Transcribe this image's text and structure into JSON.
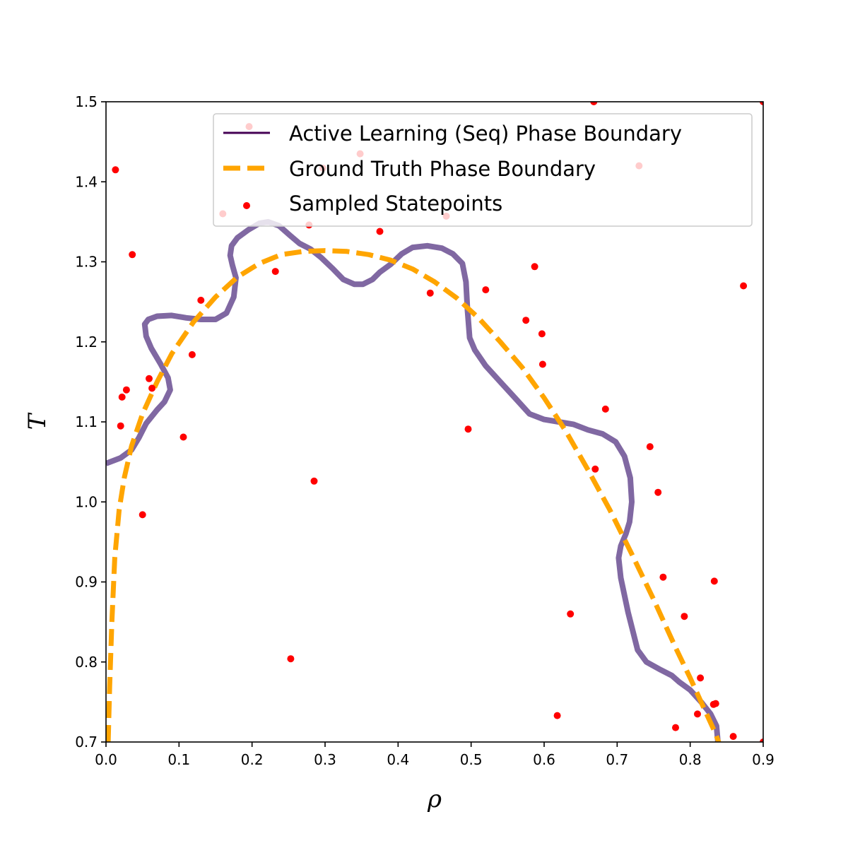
{
  "chart_data": {
    "type": "scatter",
    "xlabel": "ρ",
    "ylabel": "T",
    "xlim": [
      0.0,
      0.9
    ],
    "ylim": [
      0.7,
      1.5
    ],
    "xticks": [
      "0.0",
      "0.1",
      "0.2",
      "0.3",
      "0.4",
      "0.5",
      "0.6",
      "0.7",
      "0.8",
      "0.9"
    ],
    "yticks": [
      "0.7",
      "0.8",
      "0.9",
      "1.0",
      "1.1",
      "1.2",
      "1.3",
      "1.4",
      "1.5"
    ],
    "grid": false,
    "legend_position": "top-right",
    "series": [
      {
        "name": "Active Learning (Seq) Phase Boundary",
        "kind": "line",
        "color": "#440154",
        "stroke_color": "#8068a2",
        "x": [
          0.0,
          0.02,
          0.035,
          0.045,
          0.055,
          0.07,
          0.08,
          0.088,
          0.085,
          0.075,
          0.062,
          0.055,
          0.053,
          0.058,
          0.07,
          0.09,
          0.11,
          0.13,
          0.15,
          0.165,
          0.175,
          0.178,
          0.173,
          0.17,
          0.172,
          0.18,
          0.195,
          0.21,
          0.222,
          0.237,
          0.252,
          0.265,
          0.28,
          0.295,
          0.31,
          0.325,
          0.34,
          0.352,
          0.365,
          0.375,
          0.39,
          0.405,
          0.42,
          0.44,
          0.46,
          0.475,
          0.488,
          0.493,
          0.495,
          0.498,
          0.505,
          0.52,
          0.54,
          0.56,
          0.58,
          0.6,
          0.62,
          0.64,
          0.66,
          0.68,
          0.698,
          0.71,
          0.718,
          0.72,
          0.717,
          0.712,
          0.705,
          0.702,
          0.705,
          0.715,
          0.728,
          0.74,
          0.76,
          0.775,
          0.785,
          0.8,
          0.815,
          0.828,
          0.836,
          0.838
        ],
        "y": [
          1.048,
          1.055,
          1.065,
          1.08,
          1.098,
          1.115,
          1.125,
          1.14,
          1.155,
          1.172,
          1.192,
          1.207,
          1.222,
          1.228,
          1.232,
          1.233,
          1.23,
          1.228,
          1.228,
          1.236,
          1.256,
          1.28,
          1.296,
          1.308,
          1.32,
          1.33,
          1.34,
          1.348,
          1.35,
          1.345,
          1.333,
          1.323,
          1.316,
          1.305,
          1.292,
          1.278,
          1.272,
          1.272,
          1.278,
          1.287,
          1.297,
          1.31,
          1.318,
          1.32,
          1.317,
          1.31,
          1.298,
          1.275,
          1.24,
          1.205,
          1.19,
          1.17,
          1.15,
          1.13,
          1.11,
          1.103,
          1.1,
          1.097,
          1.09,
          1.085,
          1.075,
          1.057,
          1.03,
          1.0,
          0.975,
          0.96,
          0.945,
          0.93,
          0.905,
          0.862,
          0.815,
          0.8,
          0.79,
          0.783,
          0.775,
          0.765,
          0.75,
          0.735,
          0.72,
          0.7
        ]
      },
      {
        "name": "Ground Truth Phase Boundary",
        "kind": "dashed-line",
        "color": "#ffa500",
        "x": [
          0.003,
          0.005,
          0.008,
          0.012,
          0.018,
          0.025,
          0.035,
          0.05,
          0.07,
          0.09,
          0.12,
          0.15,
          0.18,
          0.21,
          0.24,
          0.27,
          0.3,
          0.33,
          0.36,
          0.39,
          0.42,
          0.45,
          0.48,
          0.51,
          0.54,
          0.57,
          0.6,
          0.63,
          0.66,
          0.69,
          0.72,
          0.75,
          0.78,
          0.8,
          0.82,
          0.835,
          0.843
        ],
        "y": [
          0.7,
          0.77,
          0.85,
          0.93,
          0.99,
          1.03,
          1.07,
          1.11,
          1.15,
          1.185,
          1.225,
          1.256,
          1.281,
          1.298,
          1.309,
          1.313,
          1.314,
          1.313,
          1.309,
          1.302,
          1.291,
          1.275,
          1.255,
          1.23,
          1.2,
          1.168,
          1.13,
          1.088,
          1.04,
          0.99,
          0.935,
          0.878,
          0.818,
          0.78,
          0.74,
          0.71,
          0.69
        ]
      },
      {
        "name": "Sampled Statepoints",
        "kind": "scatter",
        "color": "#ff0000",
        "x": [
          0.013,
          0.036,
          0.02,
          0.022,
          0.028,
          0.059,
          0.063,
          0.05,
          0.106,
          0.118,
          0.13,
          0.16,
          0.196,
          0.232,
          0.253,
          0.278,
          0.285,
          0.297,
          0.348,
          0.375,
          0.444,
          0.466,
          0.496,
          0.52,
          0.575,
          0.587,
          0.597,
          0.598,
          0.618,
          0.636,
          0.668,
          0.67,
          0.684,
          0.73,
          0.745,
          0.756,
          0.763,
          0.78,
          0.792,
          0.81,
          0.814,
          0.832,
          0.833,
          0.835,
          0.859,
          0.873,
          0.9,
          0.9
        ],
        "y": [
          1.415,
          1.309,
          1.095,
          1.131,
          1.14,
          1.154,
          1.142,
          0.984,
          1.081,
          1.184,
          1.252,
          1.36,
          1.469,
          1.288,
          0.804,
          1.346,
          1.026,
          1.417,
          1.435,
          1.338,
          1.261,
          1.357,
          1.091,
          1.265,
          1.227,
          1.294,
          1.21,
          1.172,
          0.733,
          0.86,
          1.5,
          1.041,
          1.116,
          1.42,
          1.069,
          1.012,
          0.906,
          0.718,
          0.857,
          0.735,
          0.78,
          0.747,
          0.901,
          0.748,
          0.707,
          1.27,
          0.7,
          1.5
        ]
      }
    ]
  },
  "legend": {
    "entries": [
      "Active Learning (Seq) Phase Boundary",
      "Ground Truth Phase Boundary",
      "Sampled Statepoints"
    ]
  }
}
